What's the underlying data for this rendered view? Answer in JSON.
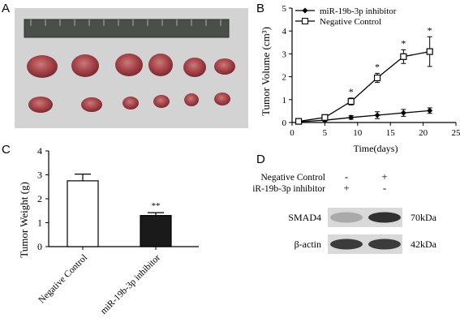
{
  "panels": {
    "a": "A",
    "b": "B",
    "c": "C",
    "d": "D"
  },
  "colors": {
    "bar_nc": "#ffffff",
    "bar_inh": "#1a1a1a",
    "blot_bg": "#d9d9d9",
    "band": "#1e1e1e"
  },
  "chart_data": [
    {
      "type": "line",
      "panel": "B",
      "title": "",
      "xlabel": "Time(days)",
      "ylabel": "Tumor Volume (cm³)",
      "xlim": [
        0,
        25
      ],
      "ylim": [
        0,
        5
      ],
      "xticks": [
        "0",
        "5",
        "10",
        "15",
        "20",
        "25"
      ],
      "yticks": [
        "0",
        "1",
        "2",
        "3",
        "4",
        "5"
      ],
      "x": [
        1,
        5,
        9,
        13,
        17,
        21
      ],
      "legend_position": "top-left",
      "series": [
        {
          "name": "miR-19b-3p inhibitor",
          "marker": "diamond",
          "values": [
            0.03,
            0.1,
            0.22,
            0.32,
            0.42,
            0.52
          ],
          "errors": [
            0.02,
            0.05,
            0.08,
            0.15,
            0.15,
            0.12
          ]
        },
        {
          "name": "Negative Control",
          "marker": "square-open",
          "values": [
            0.05,
            0.22,
            0.92,
            1.95,
            2.88,
            3.1
          ],
          "errors": [
            0.02,
            0.08,
            0.15,
            0.2,
            0.3,
            0.65
          ]
        }
      ],
      "significance": [
        {
          "x": 9,
          "label": "*"
        },
        {
          "x": 13,
          "label": "*"
        },
        {
          "x": 17,
          "label": "*"
        },
        {
          "x": 21,
          "label": "*"
        }
      ]
    },
    {
      "type": "bar",
      "panel": "C",
      "title": "",
      "xlabel": "",
      "ylabel": "Tumor Weight (g)",
      "ylim": [
        0,
        4
      ],
      "yticks": [
        "0",
        "1",
        "2",
        "3",
        "4"
      ],
      "categories": [
        "Negative Control",
        "miR-19b-3p inhibitor"
      ],
      "values": [
        2.75,
        1.3
      ],
      "errors": [
        0.28,
        0.12
      ],
      "significance": [
        {
          "category": "miR-19b-3p inhibitor",
          "label": "**"
        }
      ]
    }
  ],
  "western_blot": {
    "conditions": [
      {
        "label": "Negative Control",
        "lanes": [
          "-",
          "+"
        ]
      },
      {
        "label": "miR-19b-3p inhibitor",
        "lanes": [
          "+",
          "-"
        ]
      }
    ],
    "rows": [
      {
        "protein": "SMAD4",
        "size": "70kDa",
        "lane_intensity": [
          0.25,
          0.9
        ]
      },
      {
        "protein": "β-actin",
        "size": "42kDa",
        "lane_intensity": [
          0.85,
          0.85
        ]
      }
    ]
  }
}
